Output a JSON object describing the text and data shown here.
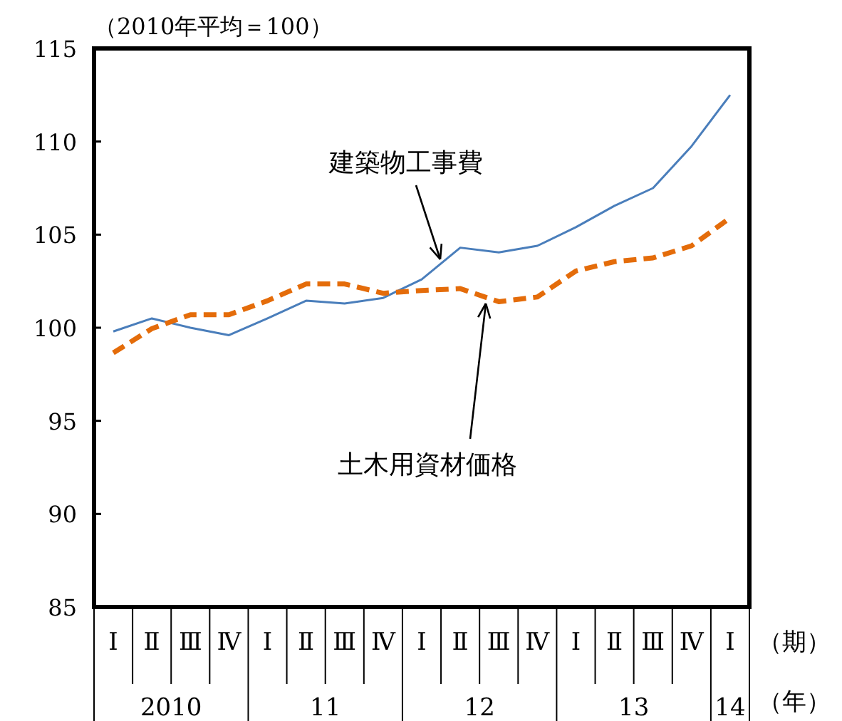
{
  "chart_data": {
    "type": "line",
    "ylabel": "（2010年平均＝100）",
    "categories": [
      "Ⅰ",
      "Ⅱ",
      "Ⅲ",
      "Ⅳ",
      "Ⅰ",
      "Ⅱ",
      "Ⅲ",
      "Ⅳ",
      "Ⅰ",
      "Ⅱ",
      "Ⅲ",
      "Ⅳ",
      "Ⅰ",
      "Ⅱ",
      "Ⅲ",
      "Ⅳ",
      "Ⅰ"
    ],
    "series": [
      {
        "name": "建築物工事費",
        "color": "#4a7ebb",
        "line_style": "solid",
        "values": [
          99.8,
          100.5,
          100.0,
          99.6,
          100.5,
          101.45,
          101.3,
          101.6,
          102.6,
          104.3,
          104.05,
          104.4,
          105.4,
          106.55,
          107.5,
          109.75,
          112.5
        ]
      },
      {
        "name": "土木用資材価格",
        "color": "#e46c0a",
        "line_style": "dashed",
        "values": [
          98.65,
          99.95,
          100.7,
          100.7,
          101.45,
          102.35,
          102.35,
          101.85,
          102.0,
          102.1,
          101.4,
          101.65,
          103.05,
          103.55,
          103.75,
          104.4,
          105.9
        ]
      }
    ],
    "ylim": [
      85,
      115
    ],
    "yticks": [
      85,
      90,
      95,
      100,
      105,
      110,
      115
    ],
    "grid": false,
    "legend": false,
    "marker": "none",
    "annotations": [
      "（期）",
      "（年）",
      "2010",
      "11",
      "12",
      "13",
      "14"
    ]
  }
}
